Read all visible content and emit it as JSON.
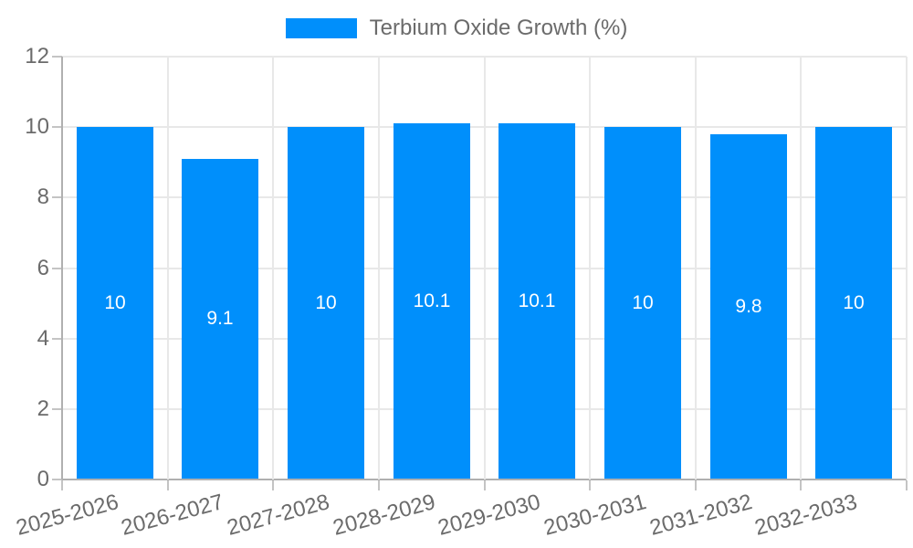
{
  "chart_data": {
    "type": "bar",
    "title": "",
    "legend_label": "Terbium Oxide Growth (%)",
    "legend_position": "top",
    "categories": [
      "2025-2026",
      "2026-2027",
      "2027-2028",
      "2028-2029",
      "2029-2030",
      "2030-2031",
      "2031-2032",
      "2032-2033"
    ],
    "series": [
      {
        "name": "Terbium Oxide Growth (%)",
        "values": [
          10,
          9.1,
          10,
          10.1,
          10.1,
          10,
          9.8,
          10
        ]
      }
    ],
    "value_labels": [
      "10",
      "9.1",
      "10",
      "10.1",
      "10.1",
      "10",
      "9.8",
      "10"
    ],
    "xlabel": "",
    "ylabel": "",
    "ylim": [
      0,
      12
    ],
    "y_ticks": [
      0,
      2,
      4,
      6,
      8,
      10,
      12
    ],
    "grid": true,
    "x_tick_rotation_deg": -15,
    "colors": {
      "bar": "#008FFB",
      "grid": "#e8e8e8",
      "axis": "#b0b0b0",
      "tick_mark": "#c4c4c4",
      "tick_label": "#6b6b6b",
      "legend_text": "#6b6b6b",
      "value_label": "#ffffff",
      "background": "#ffffff"
    }
  }
}
